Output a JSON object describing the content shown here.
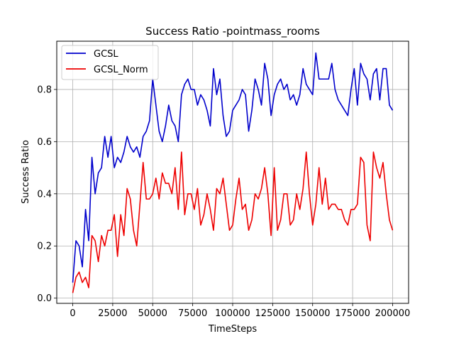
{
  "chart_data": {
    "type": "line",
    "title": "Success Ratio -pointmass_rooms",
    "xlabel": "TimeSteps",
    "ylabel": "Success Ratio",
    "xlim": [
      -10000,
      210000
    ],
    "ylim": [
      -0.02,
      0.985
    ],
    "xticks": [
      0,
      25000,
      50000,
      75000,
      100000,
      125000,
      150000,
      175000,
      200000
    ],
    "yticks": [
      0.0,
      0.2,
      0.4,
      0.6,
      0.8
    ],
    "grid": true,
    "legend": "top-left",
    "x": [
      0,
      2000,
      4000,
      6000,
      8000,
      10000,
      12000,
      14000,
      16000,
      18000,
      20000,
      22000,
      24000,
      26000,
      28000,
      30000,
      32000,
      34000,
      36000,
      38000,
      40000,
      42000,
      44000,
      46000,
      48000,
      50000,
      52000,
      54000,
      56000,
      58000,
      60000,
      62000,
      64000,
      66000,
      68000,
      70000,
      72000,
      74000,
      76000,
      78000,
      80000,
      82000,
      84000,
      86000,
      88000,
      90000,
      92000,
      94000,
      96000,
      98000,
      100000,
      102000,
      104000,
      106000,
      108000,
      110000,
      112000,
      114000,
      116000,
      118000,
      120000,
      122000,
      124000,
      126000,
      128000,
      130000,
      132000,
      134000,
      136000,
      138000,
      140000,
      142000,
      144000,
      146000,
      148000,
      150000,
      152000,
      154000,
      156000,
      158000,
      160000,
      162000,
      164000,
      166000,
      168000,
      170000,
      172000,
      174000,
      176000,
      178000,
      180000,
      182000,
      184000,
      186000,
      188000,
      190000,
      192000,
      194000,
      196000,
      198000,
      200000
    ],
    "series": [
      {
        "name": "GCSL",
        "color": "#0000cc",
        "values": [
          0.06,
          0.22,
          0.2,
          0.12,
          0.34,
          0.22,
          0.54,
          0.4,
          0.48,
          0.5,
          0.62,
          0.54,
          0.62,
          0.5,
          0.54,
          0.52,
          0.56,
          0.62,
          0.58,
          0.56,
          0.58,
          0.54,
          0.62,
          0.64,
          0.68,
          0.84,
          0.74,
          0.64,
          0.6,
          0.66,
          0.74,
          0.68,
          0.66,
          0.6,
          0.78,
          0.82,
          0.84,
          0.8,
          0.8,
          0.74,
          0.78,
          0.76,
          0.72,
          0.66,
          0.88,
          0.78,
          0.84,
          0.7,
          0.62,
          0.64,
          0.72,
          0.74,
          0.76,
          0.8,
          0.78,
          0.64,
          0.72,
          0.84,
          0.8,
          0.74,
          0.9,
          0.84,
          0.7,
          0.78,
          0.82,
          0.84,
          0.8,
          0.82,
          0.76,
          0.78,
          0.74,
          0.78,
          0.88,
          0.82,
          0.8,
          0.78,
          0.94,
          0.84,
          0.84,
          0.84,
          0.84,
          0.9,
          0.8,
          0.76,
          0.74,
          0.72,
          0.7,
          0.8,
          0.88,
          0.74,
          0.9,
          0.86,
          0.84,
          0.76,
          0.86,
          0.88,
          0.76,
          0.88,
          0.88,
          0.74,
          0.72
        ]
      },
      {
        "name": "GCSL_Norm",
        "color": "#ee0000",
        "values": [
          0.02,
          0.08,
          0.1,
          0.06,
          0.08,
          0.04,
          0.24,
          0.22,
          0.14,
          0.24,
          0.2,
          0.26,
          0.26,
          0.32,
          0.16,
          0.32,
          0.24,
          0.42,
          0.38,
          0.26,
          0.2,
          0.36,
          0.52,
          0.38,
          0.38,
          0.4,
          0.46,
          0.38,
          0.48,
          0.44,
          0.44,
          0.4,
          0.5,
          0.34,
          0.56,
          0.32,
          0.4,
          0.4,
          0.34,
          0.42,
          0.28,
          0.32,
          0.4,
          0.34,
          0.26,
          0.42,
          0.4,
          0.46,
          0.36,
          0.26,
          0.28,
          0.38,
          0.46,
          0.34,
          0.36,
          0.26,
          0.3,
          0.4,
          0.38,
          0.42,
          0.5,
          0.4,
          0.24,
          0.5,
          0.26,
          0.3,
          0.4,
          0.4,
          0.28,
          0.3,
          0.4,
          0.34,
          0.42,
          0.56,
          0.4,
          0.28,
          0.36,
          0.5,
          0.36,
          0.46,
          0.34,
          0.36,
          0.36,
          0.34,
          0.34,
          0.3,
          0.28,
          0.34,
          0.34,
          0.36,
          0.54,
          0.52,
          0.28,
          0.22,
          0.56,
          0.5,
          0.46,
          0.52,
          0.4,
          0.3,
          0.26
        ]
      }
    ]
  }
}
